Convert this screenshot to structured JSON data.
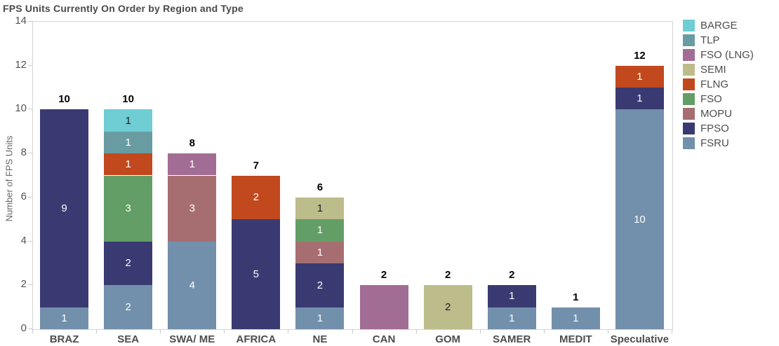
{
  "title": "FPS Units Currently On Order by Region and Type",
  "y_axis": {
    "title": "Number of FPS Units"
  },
  "colors": {
    "background": "#ffffff",
    "title_text": "#4a4a4a",
    "axis_line": "#d4d4d4",
    "tick_mark": "#c9c9c9",
    "tick_text": "#555555",
    "x_label_text": "#4d4d4d",
    "total_label_text": "#000000",
    "legend_text": "#4d4d4d"
  },
  "chart_data": {
    "type": "bar",
    "variant": "stacked-vertical",
    "title": "FPS Units Currently On Order by Region and Type",
    "xlabel": "",
    "ylabel": "Number of FPS Units",
    "ylim": [
      0,
      14
    ],
    "y_ticks": [
      0,
      2,
      4,
      6,
      8,
      10,
      12,
      14
    ],
    "grid": false,
    "legend_position": "top-right",
    "legend_top_to_bottom": [
      "BARGE",
      "TLP",
      "FSO (LNG)",
      "SEMI",
      "FLNG",
      "FSO",
      "MOPU",
      "FPSO",
      "FSRU"
    ],
    "categories": [
      "BRAZ",
      "SEA",
      "SWA/ ME",
      "AFRICA",
      "NE",
      "CAN",
      "GOM",
      "SAMER",
      "MEDIT",
      "Speculative"
    ],
    "totals": [
      10,
      10,
      8,
      7,
      6,
      2,
      2,
      2,
      1,
      12
    ],
    "series": [
      {
        "name": "FSRU",
        "color": "#7290AC",
        "label_color": "#ffffff",
        "values": [
          1,
          2,
          4,
          0,
          1,
          0,
          0,
          1,
          1,
          10
        ]
      },
      {
        "name": "FPSO",
        "color": "#3A3A72",
        "label_color": "#ffffff",
        "values": [
          9,
          2,
          0,
          5,
          2,
          0,
          0,
          1,
          0,
          1
        ]
      },
      {
        "name": "MOPU",
        "color": "#A76E72",
        "label_color": "#ffffff",
        "values": [
          0,
          0,
          3,
          0,
          1,
          0,
          0,
          0,
          0,
          0
        ]
      },
      {
        "name": "FSO",
        "color": "#639E66",
        "label_color": "#ffffff",
        "values": [
          0,
          3,
          0,
          0,
          1,
          0,
          0,
          0,
          0,
          0
        ]
      },
      {
        "name": "FLNG",
        "color": "#C1491D",
        "label_color": "#ffffff",
        "values": [
          0,
          1,
          0,
          2,
          0,
          0,
          0,
          0,
          0,
          1
        ]
      },
      {
        "name": "SEMI",
        "color": "#BDBC8B",
        "label_color": "#1e1e1e",
        "values": [
          0,
          0,
          0,
          0,
          1,
          0,
          2,
          0,
          0,
          0
        ]
      },
      {
        "name": "FSO (LNG)",
        "color": "#A26D94",
        "label_color": "#ffffff",
        "values": [
          0,
          0,
          1,
          0,
          0,
          2,
          0,
          0,
          0,
          0
        ]
      },
      {
        "name": "TLP",
        "color": "#689CA2",
        "label_color": "#ffffff",
        "values": [
          0,
          1,
          0,
          0,
          0,
          0,
          0,
          0,
          0,
          0
        ]
      },
      {
        "name": "BARGE",
        "color": "#6FCDD4",
        "label_color": "#1e1e1e",
        "values": [
          0,
          1,
          0,
          0,
          0,
          0,
          0,
          0,
          0,
          0
        ]
      }
    ],
    "hidden_segment_labels": [
      {
        "category": "CAN",
        "series": "FSO (LNG)"
      }
    ]
  }
}
